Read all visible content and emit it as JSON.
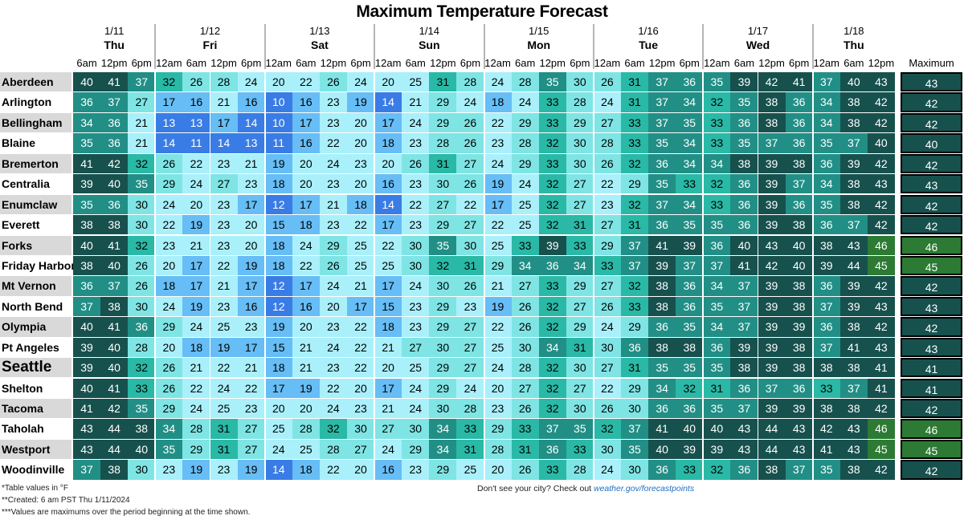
{
  "title": "Maximum Temperature Forecast",
  "days": [
    {
      "date": "1/11",
      "name": "Thu",
      "times": [
        "6am",
        "12pm",
        "6pm"
      ]
    },
    {
      "date": "1/12",
      "name": "Fri",
      "times": [
        "12am",
        "6am",
        "12pm",
        "6pm"
      ]
    },
    {
      "date": "1/13",
      "name": "Sat",
      "times": [
        "12am",
        "6am",
        "12pm",
        "6pm"
      ]
    },
    {
      "date": "1/14",
      "name": "Sun",
      "times": [
        "12am",
        "6am",
        "12pm",
        "6pm"
      ]
    },
    {
      "date": "1/15",
      "name": "Mon",
      "times": [
        "12am",
        "6am",
        "12pm",
        "6pm"
      ]
    },
    {
      "date": "1/16",
      "name": "Tue",
      "times": [
        "12am",
        "6am",
        "12pm",
        "6pm"
      ]
    },
    {
      "date": "1/17",
      "name": "Wed",
      "times": [
        "12am",
        "6am",
        "12pm",
        "6pm"
      ]
    },
    {
      "date": "1/18",
      "name": "Thu",
      "times": [
        "12am",
        "6am",
        "12pm"
      ]
    }
  ],
  "max_header": "Maximum",
  "footnotes": [
    "*Table values in °F",
    "**Created: 6 am PST Thu 1/11/2024",
    "***Values are maximums over the period beginning at the time shown."
  ],
  "note_text": "Don't see your city? Check out",
  "note_link": "weather.gov/forecastpoints",
  "colors": {
    "very_cold": "#3a7ce6",
    "cold": "#67bdf5",
    "cool": "#a9f0fb",
    "mild": "#7fe4e4",
    "warm": "#29b9a6",
    "warmer": "#218f86",
    "hot": "#17514e",
    "hottest": "#2c7a33",
    "city_shade": "#d9d9d9"
  },
  "chart_data": {
    "type": "heatmap",
    "title": "Maximum Temperature Forecast",
    "unit": "°F",
    "columns": [
      "1/11 6am",
      "1/11 12pm",
      "1/11 6pm",
      "1/12 12am",
      "1/12 6am",
      "1/12 12pm",
      "1/12 6pm",
      "1/13 12am",
      "1/13 6am",
      "1/13 12pm",
      "1/13 6pm",
      "1/14 12am",
      "1/14 6am",
      "1/14 12pm",
      "1/14 6pm",
      "1/15 12am",
      "1/15 6am",
      "1/15 12pm",
      "1/15 6pm",
      "1/16 12am",
      "1/16 6am",
      "1/16 12pm",
      "1/16 6pm",
      "1/17 12am",
      "1/17 6am",
      "1/17 12pm",
      "1/17 6pm",
      "1/18 12am",
      "1/18 6am",
      "1/18 12pm"
    ],
    "rows": [
      {
        "city": "Aberdeen",
        "values": [
          40,
          41,
          37,
          32,
          26,
          28,
          24,
          20,
          22,
          26,
          24,
          20,
          25,
          31,
          28,
          24,
          28,
          35,
          30,
          26,
          31,
          37,
          36,
          35,
          39,
          42,
          41,
          37,
          40,
          43
        ],
        "max": 43
      },
      {
        "city": "Arlington",
        "values": [
          36,
          37,
          27,
          17,
          16,
          21,
          16,
          10,
          16,
          23,
          19,
          14,
          21,
          29,
          24,
          18,
          24,
          33,
          28,
          24,
          31,
          37,
          34,
          32,
          35,
          38,
          36,
          34,
          38,
          42
        ],
        "max": 42
      },
      {
        "city": "Bellingham",
        "values": [
          34,
          36,
          21,
          13,
          13,
          17,
          14,
          10,
          17,
          23,
          20,
          17,
          24,
          29,
          26,
          22,
          29,
          33,
          29,
          27,
          33,
          37,
          35,
          33,
          36,
          38,
          36,
          34,
          38,
          42
        ],
        "max": 42
      },
      {
        "city": "Blaine",
        "values": [
          35,
          36,
          21,
          14,
          11,
          14,
          13,
          11,
          16,
          22,
          20,
          18,
          23,
          28,
          26,
          23,
          28,
          32,
          30,
          28,
          33,
          35,
          34,
          33,
          35,
          37,
          36,
          35,
          37,
          40
        ],
        "max": 40
      },
      {
        "city": "Bremerton",
        "values": [
          41,
          42,
          32,
          26,
          22,
          23,
          21,
          19,
          20,
          24,
          23,
          20,
          26,
          31,
          27,
          24,
          29,
          33,
          30,
          26,
          32,
          36,
          34,
          34,
          38,
          39,
          38,
          36,
          39,
          42
        ],
        "max": 42
      },
      {
        "city": "Centralia",
        "values": [
          39,
          40,
          35,
          29,
          24,
          27,
          23,
          18,
          20,
          23,
          20,
          16,
          23,
          30,
          26,
          19,
          24,
          32,
          27,
          22,
          29,
          35,
          33,
          32,
          36,
          39,
          37,
          34,
          38,
          43
        ],
        "max": 43
      },
      {
        "city": "Enumclaw",
        "values": [
          35,
          36,
          30,
          24,
          20,
          23,
          17,
          12,
          17,
          21,
          18,
          14,
          22,
          27,
          22,
          17,
          25,
          32,
          27,
          23,
          32,
          37,
          34,
          33,
          36,
          39,
          36,
          35,
          38,
          42
        ],
        "max": 42
      },
      {
        "city": "Everett",
        "values": [
          38,
          38,
          30,
          22,
          19,
          23,
          20,
          15,
          18,
          23,
          22,
          17,
          23,
          29,
          27,
          22,
          25,
          32,
          31,
          27,
          31,
          36,
          35,
          35,
          36,
          39,
          38,
          36,
          37,
          42
        ],
        "max": 42
      },
      {
        "city": "Forks",
        "values": [
          40,
          41,
          32,
          23,
          21,
          23,
          20,
          18,
          24,
          29,
          25,
          22,
          30,
          35,
          30,
          25,
          33,
          39,
          33,
          29,
          37,
          41,
          39,
          36,
          40,
          43,
          40,
          38,
          43,
          46
        ],
        "max": 46
      },
      {
        "city": "Friday Harbor",
        "values": [
          38,
          40,
          26,
          20,
          17,
          22,
          19,
          18,
          22,
          26,
          25,
          25,
          30,
          32,
          31,
          29,
          34,
          36,
          34,
          33,
          37,
          39,
          37,
          37,
          41,
          42,
          40,
          39,
          44,
          45
        ],
        "max": 45
      },
      {
        "city": "Mt Vernon",
        "values": [
          36,
          37,
          26,
          18,
          17,
          21,
          17,
          12,
          17,
          24,
          21,
          17,
          24,
          30,
          26,
          21,
          27,
          33,
          29,
          27,
          32,
          38,
          36,
          34,
          37,
          39,
          38,
          36,
          39,
          42
        ],
        "max": 42
      },
      {
        "city": "North Bend",
        "values": [
          37,
          38,
          30,
          24,
          19,
          23,
          16,
          12,
          16,
          20,
          17,
          15,
          23,
          29,
          23,
          19,
          26,
          32,
          27,
          26,
          33,
          38,
          36,
          35,
          37,
          39,
          38,
          37,
          39,
          43
        ],
        "max": 43
      },
      {
        "city": "Olympia",
        "values": [
          40,
          41,
          36,
          29,
          24,
          25,
          23,
          19,
          20,
          23,
          22,
          18,
          23,
          29,
          27,
          22,
          26,
          32,
          29,
          24,
          29,
          36,
          35,
          34,
          37,
          39,
          39,
          36,
          38,
          42
        ],
        "max": 42
      },
      {
        "city": "Pt Angeles",
        "values": [
          39,
          40,
          28,
          20,
          18,
          19,
          17,
          15,
          21,
          24,
          22,
          21,
          27,
          30,
          27,
          25,
          30,
          34,
          31,
          30,
          36,
          38,
          38,
          36,
          39,
          39,
          38,
          37,
          41,
          43
        ],
        "max": 43
      },
      {
        "city": "Seattle",
        "values": [
          39,
          40,
          32,
          26,
          21,
          22,
          21,
          18,
          21,
          23,
          22,
          20,
          25,
          29,
          27,
          24,
          28,
          32,
          30,
          27,
          31,
          35,
          35,
          35,
          38,
          39,
          38,
          38,
          38,
          41
        ],
        "max": 41
      },
      {
        "city": "Shelton",
        "values": [
          40,
          41,
          33,
          26,
          22,
          24,
          22,
          17,
          19,
          22,
          20,
          17,
          24,
          29,
          24,
          20,
          27,
          32,
          27,
          22,
          29,
          34,
          32,
          31,
          36,
          37,
          36,
          33,
          37,
          41
        ],
        "max": 41
      },
      {
        "city": "Tacoma",
        "values": [
          41,
          42,
          35,
          29,
          24,
          25,
          23,
          20,
          20,
          24,
          23,
          21,
          24,
          30,
          28,
          23,
          26,
          32,
          30,
          26,
          30,
          36,
          36,
          35,
          37,
          39,
          39,
          38,
          38,
          42
        ],
        "max": 42
      },
      {
        "city": "Taholah",
        "values": [
          43,
          44,
          38,
          34,
          28,
          31,
          27,
          25,
          28,
          32,
          30,
          27,
          30,
          34,
          33,
          29,
          33,
          37,
          35,
          32,
          37,
          41,
          40,
          40,
          43,
          44,
          43,
          42,
          43,
          46
        ],
        "max": 46
      },
      {
        "city": "Westport",
        "values": [
          43,
          44,
          40,
          35,
          29,
          31,
          27,
          24,
          25,
          28,
          27,
          24,
          29,
          34,
          31,
          28,
          31,
          36,
          33,
          30,
          35,
          40,
          39,
          39,
          43,
          44,
          43,
          41,
          43,
          45
        ],
        "max": 45
      },
      {
        "city": "Woodinville",
        "values": [
          37,
          38,
          30,
          23,
          19,
          23,
          19,
          14,
          18,
          22,
          20,
          16,
          23,
          29,
          25,
          20,
          26,
          33,
          28,
          24,
          30,
          36,
          33,
          32,
          36,
          38,
          37,
          35,
          38,
          42
        ],
        "max": 42
      }
    ]
  }
}
